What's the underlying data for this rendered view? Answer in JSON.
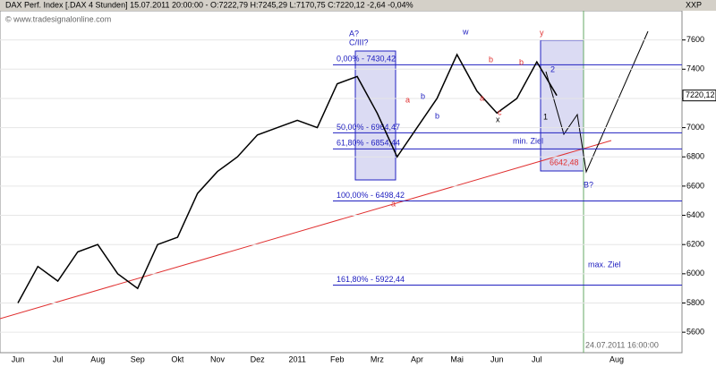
{
  "chart_data": {
    "type": "line",
    "title": "DAX Perf. Index [.DAX  4 Stunden] 15.07.2011 20:00:00 - O:7222,79 H:7245,29 L:7170,75 C:7220,12 -2,64 -0,04%",
    "watermark": "© www.tradesignalonline.com",
    "axis_label": "XXP",
    "categories": [
      "Jun",
      null,
      "Jul",
      null,
      "Aug",
      null,
      "Sep",
      null,
      "Okt",
      null,
      "Nov",
      null,
      "Dez",
      null,
      "2011",
      null,
      "Feb",
      null,
      "Mrz",
      null,
      "Apr",
      null,
      "Mai",
      null,
      "Jun",
      null,
      "Jul",
      null,
      null,
      null,
      "Aug",
      null,
      null
    ],
    "series": [
      {
        "name": "DAX",
        "color": "#000000",
        "values": [
          5800,
          6050,
          5950,
          6150,
          6200,
          6000,
          5900,
          6200,
          6250,
          6550,
          6700,
          6800,
          6950,
          7000,
          7050,
          7000,
          7300,
          7350,
          7100,
          6800,
          7000,
          7200,
          7500,
          7250,
          7100,
          7200,
          7450,
          7220,
          null,
          null,
          null,
          null,
          null
        ]
      }
    ],
    "last_price": 7220.12,
    "last_price_label": "7220,12",
    "ylim": [
      5460,
      7800
    ],
    "yticks": [
      5600,
      5800,
      6000,
      6200,
      6400,
      6600,
      6800,
      7000,
      7200,
      7400,
      7600
    ],
    "levels": [
      {
        "value": 7430.42,
        "label": "0,00% - 7430,42"
      },
      {
        "value": 6964.47,
        "label": "50,00% - 6964,47"
      },
      {
        "value": 6854.44,
        "label": "61,80% - 6854,44"
      },
      {
        "value": 6498.42,
        "label": "100,00% - 6498,42"
      },
      {
        "value": 5922.44,
        "label": "161,80% - 5922,44"
      }
    ],
    "annotations": [
      "A?",
      "C/III?",
      "min. Ziel",
      "max. Ziel",
      "6642,48",
      "B?",
      "24.07.2011 16:00:00",
      "a",
      "b",
      "w",
      "a",
      "c",
      "x",
      "b",
      "y",
      "1",
      "2",
      "b",
      "a",
      "b"
    ]
  }
}
